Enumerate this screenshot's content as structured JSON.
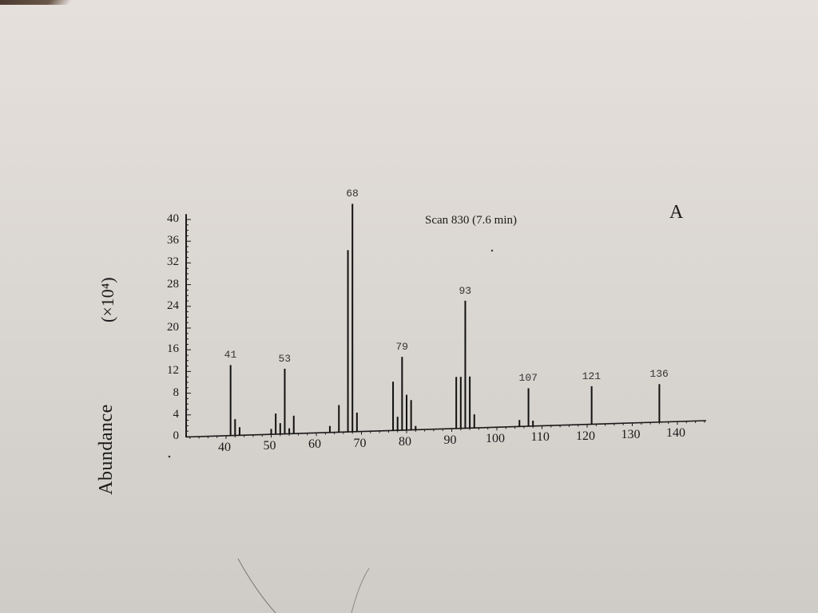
{
  "page": {
    "scan_label": "Scan 830 (7.6 min)",
    "panel_letter": "A",
    "y_axis_label": "Abundance",
    "y_axis_unit": "(×10⁴)"
  },
  "colors": {
    "paper": "#dcd8d3",
    "ink": "#1a1a1a"
  },
  "chart_data": {
    "type": "bar",
    "title": "Scan 830 (7.6 min)",
    "subtitle": "A",
    "xlabel": "",
    "ylabel": "Abundance (×10⁴)",
    "xlim": [
      30,
      147
    ],
    "ylim": [
      0,
      40
    ],
    "x_ticks": [
      40,
      50,
      60,
      70,
      80,
      90,
      100,
      110,
      120,
      130,
      140
    ],
    "y_ticks": [
      0,
      4,
      8,
      12,
      16,
      20,
      24,
      28,
      32,
      36,
      40
    ],
    "grid": false,
    "legend": null,
    "peaks": [
      {
        "mz": 41,
        "abundance": 13,
        "label": "41"
      },
      {
        "mz": 42,
        "abundance": 3
      },
      {
        "mz": 43,
        "abundance": 1.5
      },
      {
        "mz": 50,
        "abundance": 1
      },
      {
        "mz": 51,
        "abundance": 3.8
      },
      {
        "mz": 52,
        "abundance": 2
      },
      {
        "mz": 53,
        "abundance": 12,
        "label": "53"
      },
      {
        "mz": 54,
        "abundance": 1
      },
      {
        "mz": 55,
        "abundance": 3.3
      },
      {
        "mz": 63,
        "abundance": 1.2
      },
      {
        "mz": 65,
        "abundance": 5
      },
      {
        "mz": 67,
        "abundance": 33.5
      },
      {
        "mz": 68,
        "abundance": 42,
        "label": "68"
      },
      {
        "mz": 69,
        "abundance": 3.5
      },
      {
        "mz": 77,
        "abundance": 9
      },
      {
        "mz": 78,
        "abundance": 2.5
      },
      {
        "mz": 79,
        "abundance": 13.5,
        "label": "79"
      },
      {
        "mz": 80,
        "abundance": 6.5
      },
      {
        "mz": 81,
        "abundance": 5.5
      },
      {
        "mz": 82,
        "abundance": 0.7
      },
      {
        "mz": 91,
        "abundance": 9.5
      },
      {
        "mz": 92,
        "abundance": 9.5
      },
      {
        "mz": 93,
        "abundance": 23.5,
        "label": "93"
      },
      {
        "mz": 94,
        "abundance": 9.5
      },
      {
        "mz": 95,
        "abundance": 2.5
      },
      {
        "mz": 105,
        "abundance": 1.2
      },
      {
        "mz": 107,
        "abundance": 7,
        "label": "107"
      },
      {
        "mz": 108,
        "abundance": 1
      },
      {
        "mz": 121,
        "abundance": 7,
        "label": "121"
      },
      {
        "mz": 136,
        "abundance": 7,
        "label": "136"
      }
    ],
    "categories": [
      41,
      42,
      43,
      50,
      51,
      52,
      53,
      54,
      55,
      63,
      65,
      67,
      68,
      69,
      77,
      78,
      79,
      80,
      81,
      82,
      91,
      92,
      93,
      94,
      95,
      105,
      107,
      108,
      121,
      136
    ],
    "values": [
      13,
      3,
      1.5,
      1,
      3.8,
      2,
      12,
      1,
      3.3,
      1.2,
      5,
      33.5,
      42,
      3.5,
      9,
      2.5,
      13.5,
      6.5,
      5.5,
      0.7,
      9.5,
      9.5,
      23.5,
      9.5,
      2.5,
      1.2,
      7,
      1,
      7,
      7
    ],
    "labeled_peaks": [
      "41",
      "53",
      "68",
      "79",
      "93",
      "107",
      "121",
      "136"
    ]
  }
}
